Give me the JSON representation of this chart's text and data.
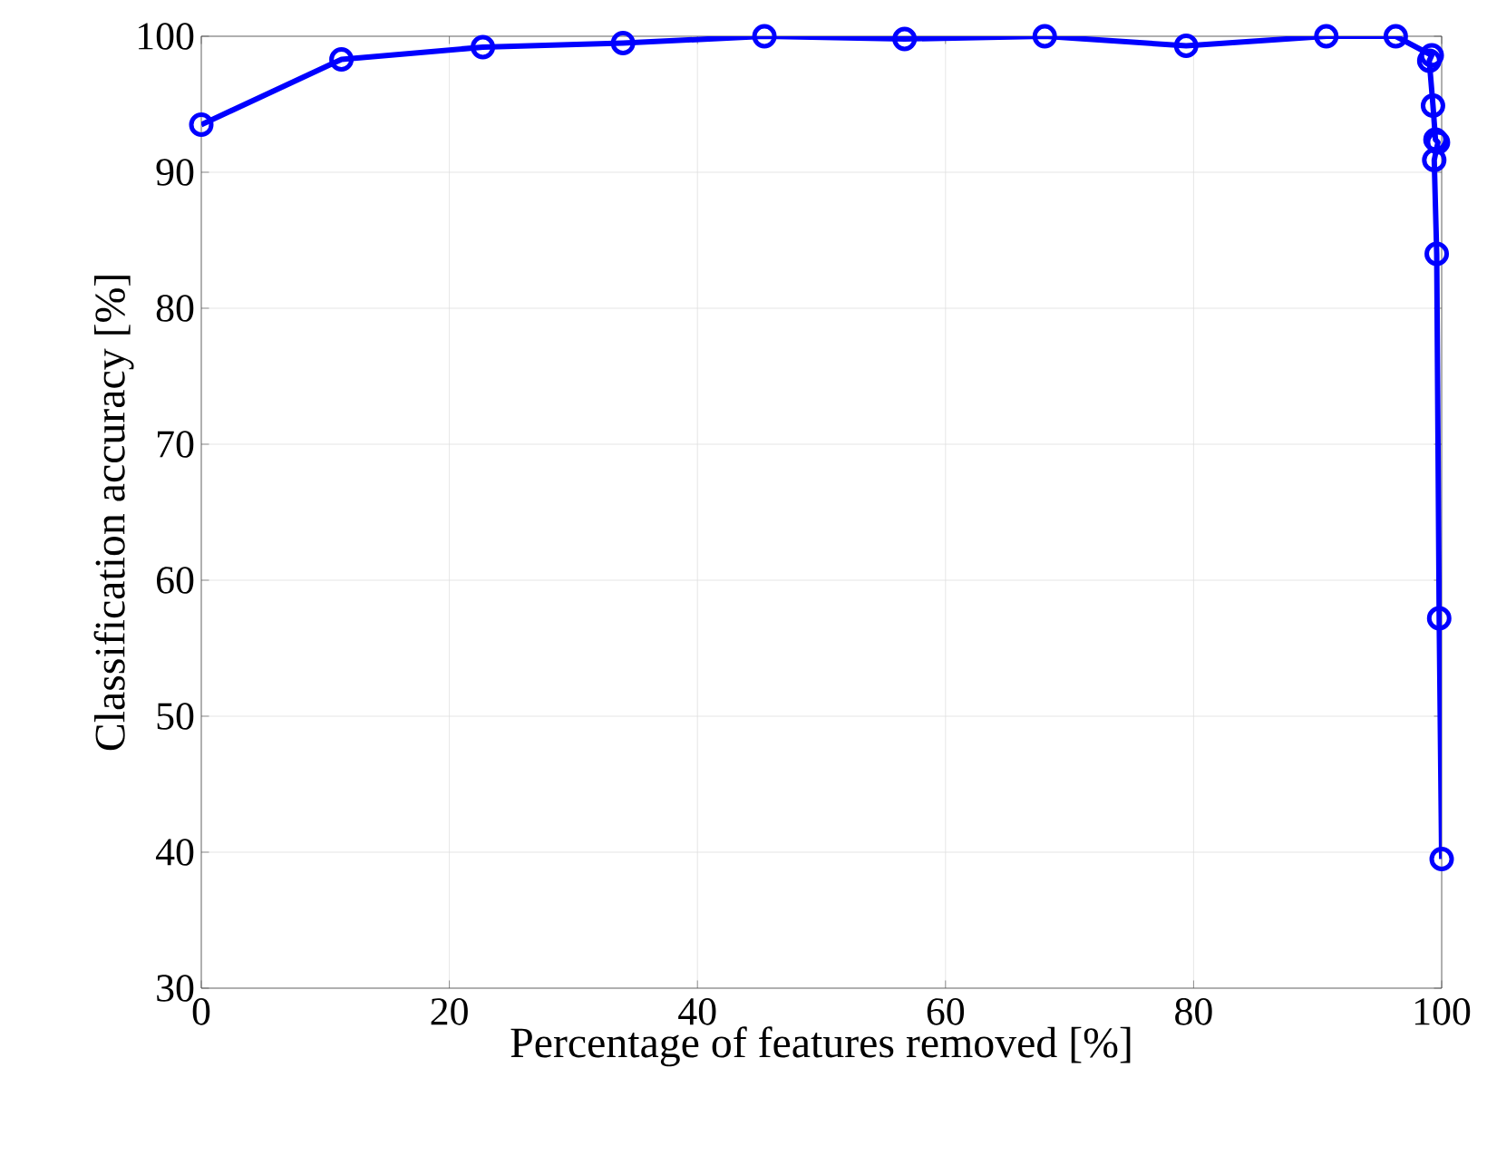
{
  "chart_data": {
    "type": "line",
    "xlabel": "Percentage of features removed [%]",
    "ylabel": "Classification accuracy [%]",
    "x": [
      0,
      11.3,
      22.7,
      34,
      45.4,
      56.7,
      68,
      79.4,
      90.7,
      96.3,
      99.2,
      99.0,
      99.3,
      99.5,
      99.7,
      99.4,
      99.6,
      99.8,
      100
    ],
    "series": [
      {
        "color": "#0000ff",
        "values": [
          93.5,
          98.3,
          99.2,
          99.5,
          100,
          99.8,
          100,
          99.3,
          100,
          100,
          98.6,
          98.2,
          94.9,
          92.4,
          92.2,
          90.9,
          84,
          57.2,
          39.5
        ]
      }
    ],
    "xlim": [
      0,
      100
    ],
    "ylim": [
      30,
      100
    ],
    "xticks": [
      0,
      20,
      40,
      60,
      80,
      100
    ],
    "yticks": [
      30,
      40,
      50,
      60,
      70,
      80,
      90,
      100
    ],
    "grid": true,
    "marker": "circle",
    "line_style": "solid"
  }
}
